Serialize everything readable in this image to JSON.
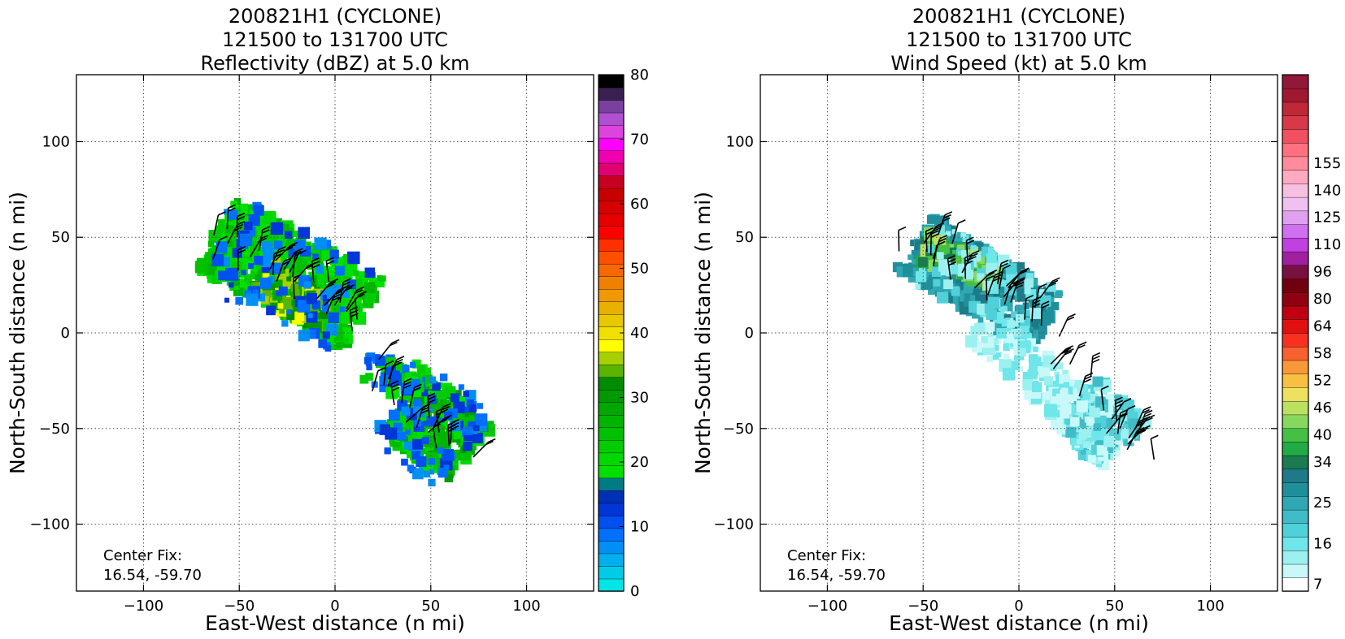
{
  "figure": {
    "background": "#ffffff"
  },
  "chart_data": [
    {
      "type": "heatmap",
      "title": [
        "200821H1 (CYCLONE)",
        "121500 to 131700 UTC",
        "Reflectivity (dBZ) at 5.0 km"
      ],
      "xlabel": "East-West distance (n mi)",
      "ylabel": "North-South distance (n mi)",
      "xlim": [
        -135,
        135
      ],
      "ylim": [
        -135,
        135
      ],
      "xticks": [
        -100,
        -50,
        0,
        50,
        100
      ],
      "yticks": [
        -100,
        -50,
        0,
        50,
        100
      ],
      "tick_labels_x": [
        "−100",
        "−50",
        "0",
        "50",
        "100"
      ],
      "tick_labels_y": [
        "−100",
        "−50",
        "0",
        "50",
        "100"
      ],
      "grid": true,
      "annotation": [
        "Center Fix:",
        "16.54, -59.70"
      ],
      "field": "reflectivity",
      "colorbar": {
        "min": 0,
        "max": 80,
        "ticks": [
          0,
          10,
          20,
          30,
          40,
          50,
          60,
          70,
          80
        ],
        "tick_labels": [
          "0",
          "10",
          "20",
          "30",
          "40",
          "50",
          "60",
          "70",
          "80"
        ],
        "colors": [
          "#00e5e5",
          "#00cce8",
          "#00b0ee",
          "#0090f5",
          "#0070ff",
          "#0050f0",
          "#0035d8",
          "#0030b5",
          "#007a85",
          "#00e000",
          "#00d800",
          "#00cc00",
          "#00c000",
          "#00b400",
          "#00a800",
          "#009a00",
          "#008c00",
          "#5ab400",
          "#a8d000",
          "#ffff00",
          "#f0e000",
          "#e8c800",
          "#e8b000",
          "#f09800",
          "#f08000",
          "#f86800",
          "#ff5000",
          "#ff3000",
          "#ff0000",
          "#e60000",
          "#d60000",
          "#c80000",
          "#c80020",
          "#e00070",
          "#f000b0",
          "#ff00ff",
          "#dd44dd",
          "#b050d0",
          "#7a40a0",
          "#3a2050",
          "#000000"
        ]
      }
    },
    {
      "type": "heatmap",
      "title": [
        "200821H1 (CYCLONE)",
        "121500 to 131700 UTC",
        "Wind Speed (kt) at 5.0 km"
      ],
      "xlabel": "East-West distance (n mi)",
      "ylabel": "North-South distance (n mi)",
      "xlim": [
        -135,
        135
      ],
      "ylim": [
        -135,
        135
      ],
      "xticks": [
        -100,
        -50,
        0,
        50,
        100
      ],
      "yticks": [
        -100,
        -50,
        0,
        50,
        100
      ],
      "tick_labels_x": [
        "−100",
        "−50",
        "0",
        "50",
        "100"
      ],
      "tick_labels_y": [
        "−100",
        "−50",
        "0",
        "50",
        "100"
      ],
      "grid": true,
      "annotation": [
        "Center Fix:",
        "16.54, -59.70"
      ],
      "field": "wind_speed",
      "colorbar": {
        "tick_labels": [
          "7",
          "16",
          "25",
          "34",
          "40",
          "46",
          "52",
          "58",
          "64",
          "80",
          "96",
          "110",
          "125",
          "140",
          "155"
        ],
        "tick_bin_index": [
          0,
          3,
          6,
          9,
          11,
          13,
          15,
          17,
          19,
          21,
          23,
          25,
          27,
          29,
          31
        ],
        "colors": [
          "#ffffff",
          "#c8f8f8",
          "#9cf0f0",
          "#6ee6ea",
          "#50d0d8",
          "#40bcc8",
          "#30a8b4",
          "#208f9c",
          "#1e7a88",
          "#1a7a50",
          "#22aa44",
          "#44c044",
          "#88d860",
          "#bce060",
          "#f0e060",
          "#f8c040",
          "#f89838",
          "#f86030",
          "#f83020",
          "#e01010",
          "#c00010",
          "#900010",
          "#700010",
          "#7a1040",
          "#a020a0",
          "#c040e0",
          "#d070f0",
          "#e0a0f0",
          "#f0c0f0",
          "#f8c0e0",
          "#ffaac0",
          "#ff8c9c",
          "#ff7080",
          "#f05060",
          "#d83848",
          "#c02838",
          "#a01830",
          "#901838"
        ]
      }
    }
  ]
}
